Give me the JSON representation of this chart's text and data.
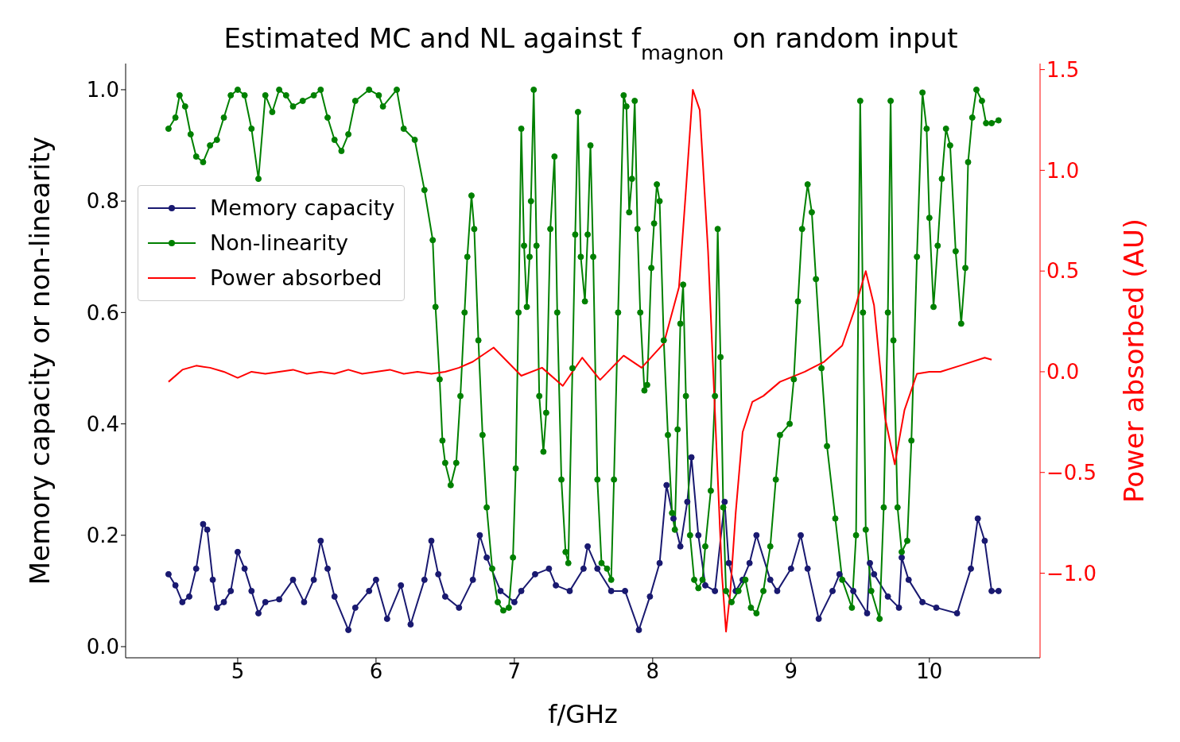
{
  "chart_data": {
    "type": "line",
    "title": "Estimated MC and NL against f$_{magnon}$ on random input",
    "xlabel": "f/GHz",
    "ylabel": "Memory capacity or non-linearity",
    "y2label": "Power absorbed (AU)",
    "xlim": [
      4.19,
      10.8
    ],
    "xticks": [
      5,
      6,
      7,
      8,
      9,
      10
    ],
    "ylim": [
      -0.02,
      1.047
    ],
    "yticks": [
      {
        "value": 0,
        "label": "0.0"
      },
      {
        "value": 0.2,
        "label": "0.2"
      },
      {
        "value": 0.4,
        "label": "0.4"
      },
      {
        "value": 0.6,
        "label": "0.6"
      },
      {
        "value": 0.8,
        "label": "0.8"
      },
      {
        "value": 1,
        "label": "1.0"
      }
    ],
    "y2lim": [
      -1.42,
      1.53
    ],
    "y2ticks": [
      {
        "value": -1,
        "label": "−1.0"
      },
      {
        "value": -0.5,
        "label": "−0.5"
      },
      {
        "value": 0,
        "label": "0.0"
      },
      {
        "value": 0.5,
        "label": "0.5"
      },
      {
        "value": 1,
        "label": "1.0"
      },
      {
        "value": 1.5,
        "label": "1.5"
      }
    ],
    "legend": "top left",
    "line_style": "solid",
    "series": [
      {
        "name": "Memory capacity",
        "color": "#191970",
        "marker": "circle",
        "x": [
          4.5,
          4.55,
          4.6,
          4.65,
          4.7,
          4.75,
          4.78,
          4.82,
          4.85,
          4.9,
          4.95,
          5.0,
          5.05,
          5.1,
          5.15,
          5.2,
          5.3,
          5.4,
          5.48,
          5.55,
          5.6,
          5.65,
          5.7,
          5.8,
          5.85,
          5.95,
          6.0,
          6.08,
          6.18,
          6.25,
          6.35,
          6.4,
          6.45,
          6.5,
          6.6,
          6.7,
          6.75,
          6.8,
          6.9,
          7.0,
          7.05,
          7.15,
          7.25,
          7.3,
          7.4,
          7.5,
          7.53,
          7.6,
          7.7,
          7.8,
          7.9,
          7.98,
          8.05,
          8.1,
          8.15,
          8.2,
          8.25,
          8.28,
          8.33,
          8.38,
          8.45,
          8.52,
          8.55,
          8.6,
          8.65,
          8.7,
          8.75,
          8.85,
          8.9,
          9.0,
          9.07,
          9.12,
          9.2,
          9.3,
          9.35,
          9.45,
          9.55,
          9.57,
          9.6,
          9.7,
          9.78,
          9.8,
          9.85,
          9.95,
          10.05,
          10.2,
          10.3,
          10.35,
          10.4,
          10.45,
          10.5
        ],
        "values": [
          0.13,
          0.11,
          0.08,
          0.09,
          0.14,
          0.22,
          0.21,
          0.12,
          0.07,
          0.08,
          0.1,
          0.17,
          0.14,
          0.1,
          0.06,
          0.08,
          0.085,
          0.12,
          0.08,
          0.12,
          0.19,
          0.14,
          0.09,
          0.03,
          0.07,
          0.1,
          0.12,
          0.05,
          0.11,
          0.04,
          0.12,
          0.19,
          0.13,
          0.09,
          0.07,
          0.12,
          0.2,
          0.16,
          0.1,
          0.08,
          0.1,
          0.13,
          0.14,
          0.11,
          0.1,
          0.14,
          0.18,
          0.14,
          0.1,
          0.1,
          0.03,
          0.09,
          0.15,
          0.29,
          0.23,
          0.18,
          0.26,
          0.34,
          0.2,
          0.11,
          0.1,
          0.26,
          0.15,
          0.1,
          0.12,
          0.15,
          0.2,
          0.12,
          0.1,
          0.14,
          0.2,
          0.14,
          0.05,
          0.1,
          0.13,
          0.1,
          0.06,
          0.15,
          0.13,
          0.09,
          0.07,
          0.16,
          0.12,
          0.08,
          0.07,
          0.06,
          0.14,
          0.23,
          0.19,
          0.1,
          0.1
        ]
      },
      {
        "name": "Non-linearity",
        "color": "#008000",
        "marker": "circle",
        "x": [
          4.5,
          4.55,
          4.58,
          4.62,
          4.66,
          4.7,
          4.75,
          4.8,
          4.85,
          4.9,
          4.95,
          5.0,
          5.05,
          5.1,
          5.15,
          5.2,
          5.25,
          5.3,
          5.35,
          5.4,
          5.47,
          5.55,
          5.6,
          5.65,
          5.7,
          5.75,
          5.8,
          5.85,
          5.95,
          6.02,
          6.05,
          6.15,
          6.2,
          6.28,
          6.35,
          6.41,
          6.43,
          6.46,
          6.48,
          6.5,
          6.54,
          6.58,
          6.61,
          6.64,
          6.66,
          6.69,
          6.71,
          6.74,
          6.77,
          6.8,
          6.84,
          6.88,
          6.92,
          6.96,
          6.99,
          7.01,
          7.03,
          7.05,
          7.07,
          7.09,
          7.11,
          7.12,
          7.14,
          7.16,
          7.18,
          7.21,
          7.23,
          7.26,
          7.29,
          7.31,
          7.34,
          7.37,
          7.39,
          7.42,
          7.44,
          7.46,
          7.48,
          7.51,
          7.53,
          7.55,
          7.57,
          7.6,
          7.63,
          7.67,
          7.7,
          7.72,
          7.75,
          7.79,
          7.81,
          7.83,
          7.85,
          7.87,
          7.89,
          7.91,
          7.94,
          7.96,
          7.99,
          8.01,
          8.03,
          8.05,
          8.08,
          8.11,
          8.14,
          8.16,
          8.18,
          8.2,
          8.22,
          8.24,
          8.27,
          8.3,
          8.33,
          8.36,
          8.38,
          8.42,
          8.45,
          8.47,
          8.49,
          8.51,
          8.53,
          8.57,
          8.62,
          8.67,
          8.71,
          8.75,
          8.8,
          8.85,
          8.89,
          8.92,
          8.99,
          9.02,
          9.05,
          9.08,
          9.12,
          9.15,
          9.18,
          9.22,
          9.26,
          9.32,
          9.37,
          9.44,
          9.47,
          9.5,
          9.52,
          9.54,
          9.58,
          9.64,
          9.67,
          9.7,
          9.72,
          9.74,
          9.77,
          9.8,
          9.84,
          9.87,
          9.91,
          9.95,
          9.98,
          10.0,
          10.03,
          10.06,
          10.09,
          10.12,
          10.15,
          10.19,
          10.23,
          10.26,
          10.28,
          10.31,
          10.34,
          10.38,
          10.41,
          10.45,
          10.5
        ],
        "values": [
          0.93,
          0.95,
          0.99,
          0.97,
          0.92,
          0.88,
          0.87,
          0.9,
          0.91,
          0.95,
          0.99,
          1.0,
          0.99,
          0.93,
          0.84,
          0.99,
          0.96,
          1.0,
          0.99,
          0.97,
          0.98,
          0.99,
          1.0,
          0.95,
          0.91,
          0.89,
          0.92,
          0.98,
          1.0,
          0.99,
          0.97,
          1.0,
          0.93,
          0.91,
          0.82,
          0.73,
          0.61,
          0.48,
          0.37,
          0.33,
          0.29,
          0.33,
          0.45,
          0.6,
          0.7,
          0.81,
          0.75,
          0.55,
          0.38,
          0.25,
          0.14,
          0.08,
          0.065,
          0.07,
          0.16,
          0.32,
          0.6,
          0.93,
          0.72,
          0.61,
          0.7,
          0.8,
          1.0,
          0.72,
          0.45,
          0.35,
          0.42,
          0.75,
          0.88,
          0.6,
          0.3,
          0.17,
          0.15,
          0.5,
          0.74,
          0.96,
          0.7,
          0.62,
          0.74,
          0.9,
          0.7,
          0.3,
          0.15,
          0.14,
          0.12,
          0.3,
          0.6,
          0.99,
          0.97,
          0.78,
          0.84,
          0.98,
          0.75,
          0.6,
          0.46,
          0.47,
          0.68,
          0.76,
          0.83,
          0.8,
          0.55,
          0.38,
          0.24,
          0.21,
          0.39,
          0.58,
          0.65,
          0.45,
          0.2,
          0.12,
          0.105,
          0.12,
          0.18,
          0.28,
          0.45,
          0.75,
          0.52,
          0.25,
          0.1,
          0.08,
          0.1,
          0.12,
          0.07,
          0.06,
          0.1,
          0.18,
          0.3,
          0.38,
          0.4,
          0.48,
          0.62,
          0.75,
          0.83,
          0.78,
          0.66,
          0.5,
          0.36,
          0.23,
          0.12,
          0.07,
          0.2,
          0.98,
          0.6,
          0.21,
          0.1,
          0.05,
          0.25,
          0.6,
          0.98,
          0.55,
          0.25,
          0.17,
          0.19,
          0.37,
          0.7,
          0.995,
          0.93,
          0.77,
          0.61,
          0.72,
          0.84,
          0.93,
          0.9,
          0.71,
          0.58,
          0.68,
          0.87,
          0.95,
          1.0,
          0.98,
          0.94,
          0.94,
          0.945
        ]
      },
      {
        "name": "Power absorbed",
        "color": "#ff0000",
        "marker": "none",
        "axis": "y2",
        "x": [
          4.5,
          4.6,
          4.7,
          4.8,
          4.9,
          5.0,
          5.1,
          5.2,
          5.3,
          5.4,
          5.5,
          5.6,
          5.7,
          5.8,
          5.9,
          6.0,
          6.1,
          6.2,
          6.3,
          6.4,
          6.5,
          6.6,
          6.7,
          6.85,
          6.95,
          7.05,
          7.2,
          7.35,
          7.49,
          7.62,
          7.79,
          7.92,
          8.08,
          8.19,
          8.24,
          8.29,
          8.34,
          8.4,
          8.45,
          8.5,
          8.53,
          8.56,
          8.6,
          8.65,
          8.72,
          8.8,
          8.92,
          9.1,
          9.24,
          9.37,
          9.46,
          9.54,
          9.6,
          9.68,
          9.75,
          9.82,
          9.91,
          10.0,
          10.08,
          10.22,
          10.4,
          10.45
        ],
        "values": [
          -0.05,
          0.01,
          0.03,
          0.02,
          0.0,
          -0.03,
          0.0,
          -0.01,
          0.0,
          0.01,
          -0.01,
          0.0,
          -0.01,
          0.01,
          -0.01,
          0.0,
          0.01,
          -0.01,
          0.0,
          -0.01,
          0.0,
          0.02,
          0.05,
          0.12,
          0.05,
          -0.02,
          0.02,
          -0.07,
          0.07,
          -0.04,
          0.08,
          0.02,
          0.14,
          0.42,
          0.9,
          1.4,
          1.3,
          0.6,
          -0.2,
          -1.0,
          -1.29,
          -1.1,
          -0.7,
          -0.3,
          -0.15,
          -0.12,
          -0.05,
          0.0,
          0.05,
          0.13,
          0.31,
          0.5,
          0.33,
          -0.23,
          -0.46,
          -0.19,
          -0.01,
          0.0,
          0.0,
          0.03,
          0.07,
          0.06
        ]
      }
    ]
  }
}
